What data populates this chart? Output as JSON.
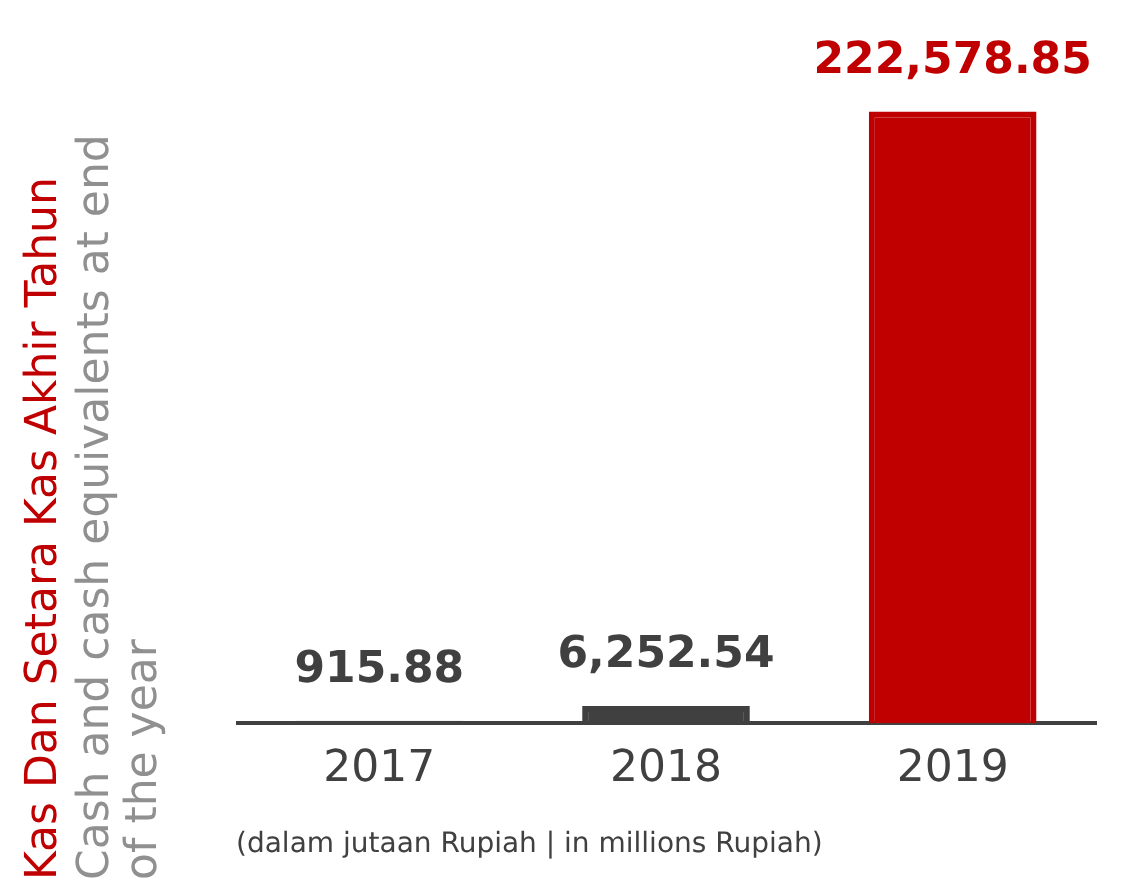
{
  "chart_data": {
    "type": "bar",
    "title": "Kas Dan Setara Kas Akhir Tahun",
    "subtitle": "Cash and cash equivalents at end of the year",
    "categories": [
      "2017",
      "2018",
      "2019"
    ],
    "values": [
      915.88,
      6252.54,
      222578.85
    ],
    "colors": [
      "#404040",
      "#404040",
      "#c00000"
    ],
    "value_labels": [
      "915.88",
      "6,252.54",
      "222,578.85"
    ],
    "annotations": [
      "(dalam jutaan Rupiah | in millions Rupiah)"
    ],
    "tick_labels": "x",
    "grid": false,
    "legend": false
  }
}
